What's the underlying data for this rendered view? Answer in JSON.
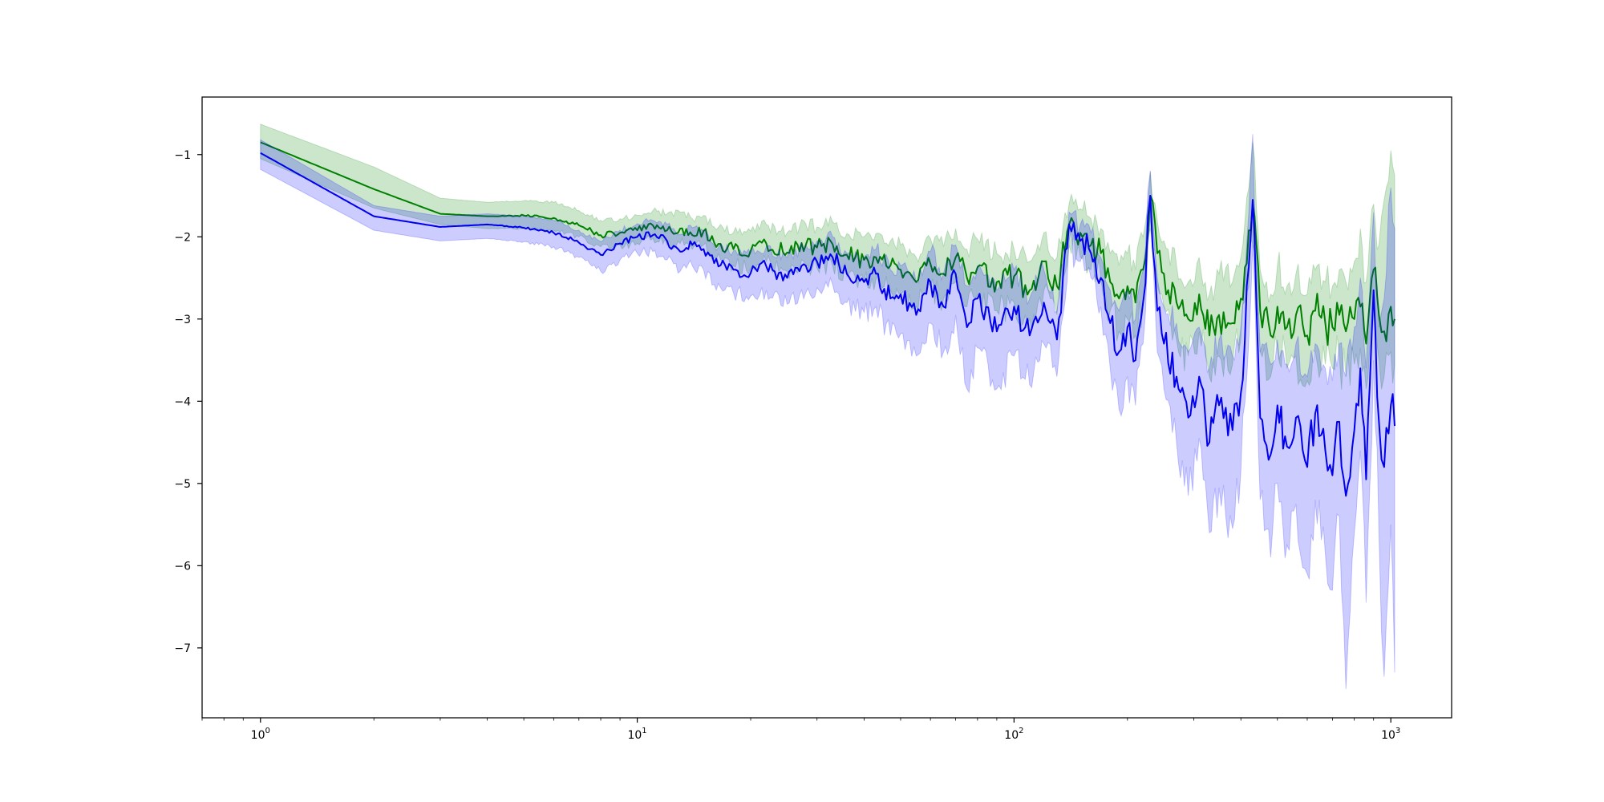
{
  "chart_data": {
    "type": "line",
    "title": "",
    "xlabel": "",
    "ylabel": "",
    "xscale": "log",
    "xlim": [
      0.7,
      1450
    ],
    "ylim": [
      -7.85,
      -0.3
    ],
    "grid": false,
    "legend": "none",
    "x_ticks": [
      {
        "value": 1,
        "base": "10",
        "exp": "0"
      },
      {
        "value": 10,
        "base": "10",
        "exp": "1"
      },
      {
        "value": 100,
        "base": "10",
        "exp": "2"
      },
      {
        "value": 1000,
        "base": "10",
        "exp": "3"
      }
    ],
    "y_ticks": [
      {
        "value": -1,
        "label": "−1"
      },
      {
        "value": -2,
        "label": "−2"
      },
      {
        "value": -3,
        "label": "−3"
      },
      {
        "value": -4,
        "label": "−4"
      },
      {
        "value": -5,
        "label": "−5"
      },
      {
        "value": -6,
        "label": "−6"
      },
      {
        "value": -7,
        "label": "−7"
      }
    ],
    "series": [
      {
        "color": "#008000",
        "band_color": "#008000",
        "x": [
          1,
          2,
          3,
          4,
          5,
          6,
          7,
          8,
          9,
          10,
          11,
          12,
          13,
          14,
          15,
          16,
          18,
          20,
          22,
          25,
          28,
          30,
          33,
          36,
          40,
          43,
          47,
          50,
          55,
          60,
          65,
          70,
          75,
          80,
          90,
          100,
          110,
          120,
          130,
          140,
          150,
          160,
          170,
          180,
          190,
          200,
          210,
          220,
          230,
          240,
          250,
          270,
          290,
          310,
          330,
          350,
          380,
          400,
          430,
          450,
          480,
          500,
          530,
          560,
          600,
          630,
          670,
          700,
          730,
          760,
          800,
          830,
          860,
          900,
          930,
          960,
          1000,
          1024
        ],
        "mean": [
          -0.85,
          -1.42,
          -1.72,
          -1.75,
          -1.74,
          -1.77,
          -1.86,
          -1.98,
          -1.95,
          -1.92,
          -1.86,
          -1.92,
          -1.9,
          -1.98,
          -1.93,
          -2.07,
          -2.15,
          -2.17,
          -2.08,
          -2.19,
          -2.1,
          -2.13,
          -2.09,
          -2.22,
          -2.28,
          -2.25,
          -2.35,
          -2.4,
          -2.55,
          -2.33,
          -2.45,
          -2.25,
          -2.5,
          -2.37,
          -2.55,
          -2.48,
          -2.65,
          -2.3,
          -2.6,
          -1.85,
          -1.95,
          -2.1,
          -2.2,
          -2.55,
          -2.75,
          -2.6,
          -2.8,
          -2.4,
          -1.5,
          -2.2,
          -2.45,
          -2.8,
          -3.0,
          -2.7,
          -3.2,
          -2.95,
          -3.05,
          -2.75,
          -1.6,
          -2.9,
          -3.2,
          -2.85,
          -3.1,
          -2.95,
          -3.2,
          -2.9,
          -3.05,
          -3.1,
          -2.95,
          -3.15,
          -3.0,
          -2.85,
          -3.3,
          -2.4,
          -2.95,
          -3.15,
          -2.85,
          -3.0
        ],
        "lower": [
          -1.05,
          -1.65,
          -1.85,
          -1.9,
          -1.9,
          -1.92,
          -2.0,
          -2.12,
          -2.1,
          -2.08,
          -2.02,
          -2.1,
          -2.08,
          -2.15,
          -2.1,
          -2.25,
          -2.35,
          -2.38,
          -2.3,
          -2.42,
          -2.35,
          -2.38,
          -2.35,
          -2.48,
          -2.55,
          -2.52,
          -2.65,
          -2.7,
          -2.85,
          -2.6,
          -2.75,
          -2.55,
          -2.85,
          -2.7,
          -2.9,
          -2.8,
          -3.0,
          -2.65,
          -2.95,
          -2.1,
          -2.25,
          -2.4,
          -2.5,
          -2.9,
          -3.15,
          -3.0,
          -3.2,
          -2.8,
          -1.9,
          -2.6,
          -2.85,
          -3.25,
          -3.45,
          -3.15,
          -3.7,
          -3.45,
          -3.55,
          -3.25,
          -2.1,
          -3.4,
          -3.7,
          -3.35,
          -3.6,
          -3.45,
          -3.75,
          -3.4,
          -3.55,
          -3.6,
          -3.45,
          -3.7,
          -3.55,
          -3.35,
          -3.85,
          -2.9,
          -3.5,
          -3.7,
          -3.4,
          -3.55
        ],
        "upper": [
          -0.63,
          -1.15,
          -1.53,
          -1.58,
          -1.56,
          -1.58,
          -1.68,
          -1.8,
          -1.78,
          -1.74,
          -1.68,
          -1.72,
          -1.7,
          -1.78,
          -1.74,
          -1.88,
          -1.95,
          -1.93,
          -1.85,
          -1.95,
          -1.84,
          -1.88,
          -1.82,
          -1.96,
          -2.0,
          -1.96,
          -2.05,
          -2.1,
          -2.25,
          -2.02,
          -2.12,
          -1.9,
          -2.15,
          -2.03,
          -2.2,
          -2.15,
          -2.3,
          -1.95,
          -2.25,
          -1.6,
          -1.66,
          -1.78,
          -1.9,
          -2.2,
          -2.35,
          -2.2,
          -2.4,
          -2.0,
          -1.2,
          -1.8,
          -2.05,
          -2.35,
          -2.55,
          -2.25,
          -2.7,
          -2.45,
          -2.55,
          -2.25,
          -0.85,
          -2.4,
          -2.7,
          -2.35,
          -2.6,
          -2.45,
          -2.7,
          -2.4,
          -2.55,
          -2.6,
          -2.4,
          -2.55,
          -2.3,
          -1.9,
          -2.55,
          -1.6,
          -2.1,
          -1.55,
          -0.95,
          -1.25
        ]
      },
      {
        "color": "#0000ee",
        "band_color": "#0000ff",
        "x": [
          1,
          2,
          3,
          4,
          5,
          6,
          7,
          8,
          9,
          10,
          11,
          12,
          13,
          14,
          15,
          16,
          18,
          20,
          22,
          25,
          28,
          30,
          33,
          36,
          40,
          43,
          47,
          50,
          55,
          60,
          65,
          70,
          75,
          80,
          90,
          100,
          110,
          120,
          130,
          140,
          150,
          160,
          170,
          180,
          190,
          200,
          210,
          220,
          230,
          240,
          250,
          270,
          290,
          310,
          330,
          350,
          380,
          400,
          430,
          450,
          480,
          500,
          530,
          560,
          600,
          630,
          670,
          700,
          730,
          760,
          800,
          830,
          860,
          900,
          930,
          960,
          1000,
          1024
        ],
        "mean": [
          -0.98,
          -1.75,
          -1.88,
          -1.85,
          -1.89,
          -1.95,
          -2.07,
          -2.22,
          -2.08,
          -2.0,
          -1.98,
          -2.05,
          -2.18,
          -2.1,
          -2.15,
          -2.32,
          -2.4,
          -2.44,
          -2.36,
          -2.5,
          -2.35,
          -2.3,
          -2.25,
          -2.45,
          -2.55,
          -2.45,
          -2.75,
          -2.7,
          -2.95,
          -2.55,
          -2.85,
          -2.45,
          -3.1,
          -2.75,
          -3.15,
          -2.85,
          -3.2,
          -2.8,
          -3.25,
          -1.85,
          -2.05,
          -2.2,
          -2.5,
          -3.05,
          -3.4,
          -3.1,
          -3.5,
          -2.8,
          -1.5,
          -2.9,
          -3.3,
          -3.7,
          -4.2,
          -3.7,
          -4.5,
          -4.05,
          -4.35,
          -3.9,
          -1.55,
          -4.2,
          -4.65,
          -4.05,
          -4.55,
          -4.2,
          -4.8,
          -4.15,
          -4.6,
          -4.9,
          -4.25,
          -5.15,
          -4.35,
          -3.6,
          -4.95,
          -2.65,
          -4.25,
          -4.8,
          -4.05,
          -4.3
        ],
        "lower": [
          -1.18,
          -1.92,
          -2.05,
          -2.02,
          -2.06,
          -2.12,
          -2.25,
          -2.42,
          -2.28,
          -2.2,
          -2.18,
          -2.28,
          -2.42,
          -2.35,
          -2.4,
          -2.58,
          -2.68,
          -2.72,
          -2.65,
          -2.82,
          -2.68,
          -2.62,
          -2.58,
          -2.8,
          -2.92,
          -2.85,
          -3.2,
          -3.18,
          -3.45,
          -3.05,
          -3.4,
          -2.95,
          -3.85,
          -3.35,
          -3.85,
          -3.45,
          -3.8,
          -3.3,
          -3.7,
          -2.05,
          -2.3,
          -2.5,
          -2.85,
          -3.6,
          -4.1,
          -3.7,
          -4.05,
          -3.3,
          -1.75,
          -3.4,
          -3.85,
          -4.5,
          -5.15,
          -4.45,
          -5.6,
          -5.05,
          -5.55,
          -4.85,
          -2.1,
          -5.2,
          -5.9,
          -5.0,
          -5.75,
          -5.25,
          -6.1,
          -5.2,
          -5.85,
          -6.3,
          -5.4,
          -7.5,
          -5.6,
          -4.6,
          -6.45,
          -3.5,
          -5.6,
          -7.35,
          -5.5,
          -7.3
        ],
        "upper": [
          -0.82,
          -1.62,
          -1.75,
          -1.72,
          -1.75,
          -1.8,
          -1.92,
          -2.06,
          -1.92,
          -1.84,
          -1.8,
          -1.85,
          -1.97,
          -1.89,
          -1.93,
          -2.1,
          -2.17,
          -2.2,
          -2.12,
          -2.25,
          -2.1,
          -2.05,
          -2.0,
          -2.2,
          -2.25,
          -2.15,
          -2.4,
          -2.35,
          -2.55,
          -2.18,
          -2.45,
          -2.1,
          -2.6,
          -2.35,
          -2.65,
          -2.4,
          -2.75,
          -2.4,
          -2.9,
          -1.7,
          -1.85,
          -1.95,
          -2.25,
          -2.65,
          -2.9,
          -2.65,
          -3.0,
          -2.4,
          -1.2,
          -2.5,
          -2.85,
          -3.05,
          -3.4,
          -3.1,
          -3.6,
          -3.25,
          -3.45,
          -3.1,
          -0.75,
          -3.4,
          -3.55,
          -3.25,
          -3.55,
          -3.3,
          -3.7,
          -3.3,
          -3.6,
          -3.75,
          -3.3,
          -3.7,
          -3.1,
          -2.5,
          -3.6,
          -1.7,
          -3.1,
          -2.75,
          -1.4,
          -1.9
        ]
      }
    ]
  }
}
